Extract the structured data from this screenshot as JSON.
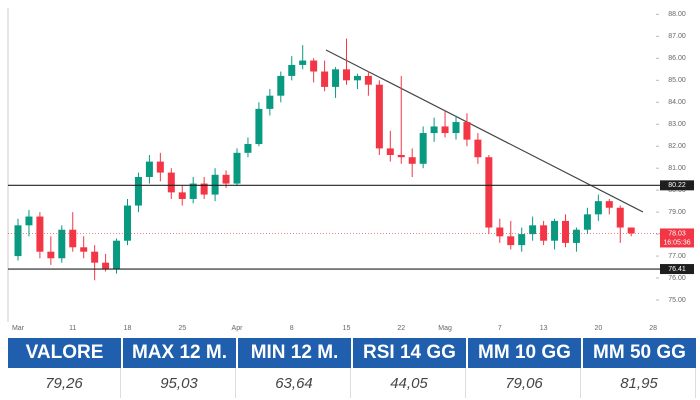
{
  "chart_data": {
    "type": "candlestick",
    "categories": [
      "Mar",
      null,
      null,
      null,
      null,
      "11",
      null,
      null,
      null,
      null,
      "18",
      null,
      null,
      null,
      null,
      "25",
      null,
      null,
      null,
      null,
      "Apr",
      null,
      null,
      null,
      null,
      "8",
      null,
      null,
      null,
      null,
      "15",
      null,
      null,
      null,
      null,
      "22",
      null,
      null,
      null,
      "Mag",
      null,
      null,
      null,
      null,
      "7",
      null,
      null,
      null,
      "13",
      null,
      null,
      null,
      null,
      "20",
      null,
      null,
      null,
      null,
      "28",
      null
    ],
    "open": [
      77.0,
      78.4,
      78.8,
      77.2,
      76.9,
      78.2,
      77.4,
      77.2,
      76.7,
      76.4,
      77.7,
      79.3,
      80.6,
      81.3,
      80.8,
      79.9,
      79.6,
      80.3,
      79.8,
      80.7,
      80.3,
      81.7,
      82.1,
      83.7,
      84.3,
      85.2,
      85.7,
      85.9,
      85.4,
      84.7,
      85.5,
      85.0,
      85.2,
      84.8,
      81.9,
      81.6,
      81.5,
      81.2,
      82.6,
      82.9,
      82.6,
      83.1,
      82.3,
      81.5,
      78.3,
      77.9,
      77.5,
      78.0,
      78.4,
      77.7,
      78.6,
      77.6,
      78.2,
      78.9,
      79.5,
      79.2,
      78.3,
      null,
      null,
      null
    ],
    "high": [
      78.7,
      79.1,
      79.0,
      77.9,
      78.4,
      79.0,
      77.9,
      77.5,
      77.1,
      77.8,
      79.6,
      80.8,
      81.6,
      81.7,
      81.0,
      80.2,
      80.6,
      80.6,
      81.0,
      80.9,
      81.9,
      82.4,
      84.0,
      84.6,
      85.4,
      86.1,
      86.6,
      86.0,
      85.9,
      85.6,
      86.9,
      85.3,
      85.4,
      85.0,
      82.7,
      85.2,
      81.9,
      82.9,
      83.3,
      83.6,
      83.4,
      83.5,
      82.6,
      81.6,
      78.7,
      78.6,
      78.3,
      78.8,
      78.6,
      78.7,
      78.9,
      78.3,
      79.2,
      79.8,
      79.6,
      79.3,
      78.3,
      null,
      null,
      null
    ],
    "low": [
      76.8,
      77.9,
      76.9,
      76.6,
      76.7,
      77.2,
      76.9,
      75.9,
      76.3,
      76.2,
      77.5,
      79.0,
      80.3,
      80.4,
      79.6,
      79.3,
      79.4,
      79.6,
      79.5,
      80.1,
      80.2,
      81.5,
      82.0,
      83.4,
      84.0,
      85.0,
      85.5,
      84.9,
      84.5,
      84.2,
      84.8,
      84.6,
      84.3,
      81.6,
      81.3,
      81.2,
      80.6,
      81.0,
      82.2,
      82.4,
      82.3,
      82.0,
      81.2,
      78.0,
      77.6,
      77.3,
      77.2,
      77.7,
      77.5,
      77.3,
      77.4,
      77.2,
      78.0,
      78.6,
      78.9,
      77.6,
      77.9,
      null,
      null,
      null
    ],
    "close": [
      78.4,
      78.8,
      77.2,
      76.9,
      78.2,
      77.4,
      77.2,
      76.7,
      76.4,
      77.7,
      79.3,
      80.6,
      81.3,
      80.8,
      79.9,
      79.6,
      80.3,
      79.8,
      80.7,
      80.3,
      81.7,
      82.1,
      83.7,
      84.3,
      85.2,
      85.7,
      85.9,
      85.4,
      84.7,
      85.5,
      85.0,
      85.2,
      84.8,
      81.9,
      81.6,
      81.5,
      81.2,
      82.6,
      82.9,
      82.6,
      83.1,
      82.3,
      81.5,
      78.3,
      77.9,
      77.5,
      78.0,
      78.4,
      77.7,
      78.6,
      77.6,
      78.2,
      78.9,
      79.5,
      79.2,
      78.3,
      78.03,
      null,
      null,
      null
    ],
    "up_color": "#089981",
    "down_color": "#f23645",
    "ylim": [
      74.0,
      88.2
    ],
    "yticks": [
      {
        "value": 75,
        "label": "75.00"
      },
      {
        "value": 76,
        "label": "76.00"
      },
      {
        "value": 77,
        "label": "77.00"
      },
      {
        "value": 78,
        "label": "78.00"
      },
      {
        "value": 79,
        "label": "79.00"
      },
      {
        "value": 80,
        "label": "80.00"
      },
      {
        "value": 81,
        "label": "81.00"
      },
      {
        "value": 82,
        "label": "82.00"
      },
      {
        "value": 83,
        "label": "83.00"
      },
      {
        "value": 84,
        "label": "84.00"
      },
      {
        "value": 85,
        "label": "85.00"
      },
      {
        "value": 86,
        "label": "86.00"
      },
      {
        "value": 87,
        "label": "87.00"
      },
      {
        "value": 88,
        "label": "88.00"
      }
    ],
    "hlines": [
      {
        "value": 80.22,
        "label": "80.22"
      },
      {
        "value": 76.41,
        "label": "76.41"
      }
    ],
    "last": {
      "value": 78.03,
      "label": "78.03",
      "countdown": "16:05:36"
    },
    "grid": false
  },
  "table": {
    "header": [
      "VALORE",
      "MAX 12 M.",
      "MIN 12 M.",
      "RSI 14 GG",
      "MM 10 GG",
      "MM 50 GG"
    ],
    "rows": [
      [
        "79,26",
        "95,03",
        "63,64",
        "44,05",
        "79,06",
        "81,95"
      ]
    ]
  }
}
